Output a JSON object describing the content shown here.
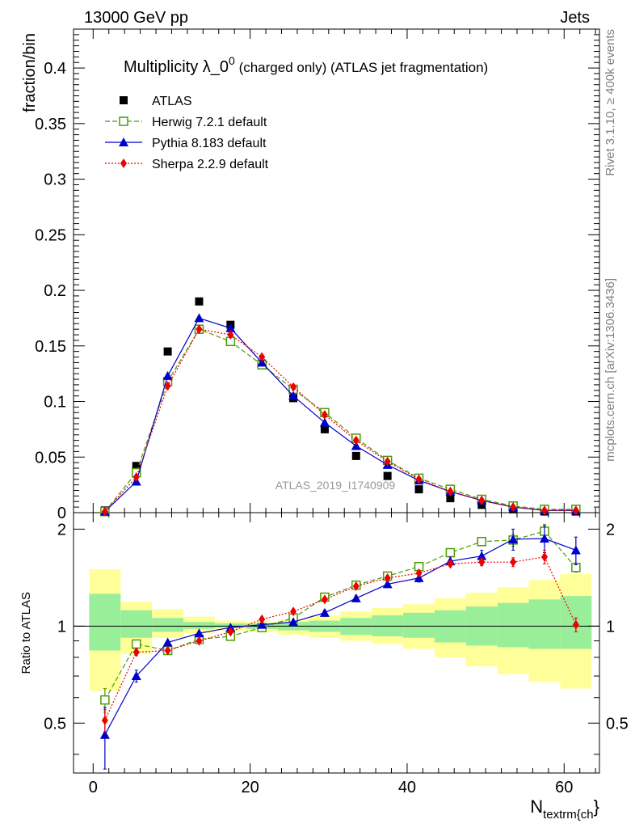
{
  "header": {
    "left": "13000 GeV pp",
    "right": "Jets",
    "title_main": "Multiplicity λ_0",
    "title_sup": "0",
    "title_rest": " (charged only) (ATLAS jet fragmentation)",
    "watermark": "ATLAS_2019_I1740909"
  },
  "side_labels": {
    "rivet": "Rivet 3.1.10, ≥ 400k events",
    "mcplots": "mcplots.cern.ch [arXiv:1306.3436]"
  },
  "chart_data": [
    {
      "type": "line",
      "panel": "main",
      "ylabel": "fraction/bin",
      "xlabel": "N_textrm{ch}",
      "xlabel_main": "N",
      "xlabel_sub": "textrm{ch",
      "xlabel_tail": "}",
      "xlim": [
        -2.5,
        64.5
      ],
      "ylim": [
        0,
        0.435
      ],
      "y_ticks": [
        0,
        0.05,
        0.1,
        0.15,
        0.2,
        0.25,
        0.3,
        0.35,
        0.4
      ],
      "y_tick_labels": [
        "0",
        "0.05",
        "0.1",
        "0.15",
        "0.2",
        "0.25",
        "0.3",
        "0.35",
        "0.4"
      ],
      "x": [
        1.5,
        5.5,
        9.5,
        13.5,
        17.5,
        21.5,
        25.5,
        29.5,
        33.5,
        37.5,
        41.5,
        45.5,
        49.5,
        53.5,
        57.5,
        61.5
      ],
      "series": [
        {
          "name": "ATLAS",
          "color": "#000000",
          "marker": "square",
          "values": [
            0.002,
            0.042,
            0.145,
            0.19,
            0.169,
            0.134,
            0.103,
            0.075,
            0.051,
            0.033,
            0.021,
            0.013,
            0.007,
            0.003,
            0.001,
            0.001
          ]
        },
        {
          "name": "Herwig 7.2.1 default",
          "color": "#4e9a06",
          "marker": "open-square",
          "dash": "6,3",
          "values": [
            0.001,
            0.036,
            0.118,
            0.165,
            0.154,
            0.133,
            0.111,
            0.09,
            0.067,
            0.047,
            0.031,
            0.021,
            0.012,
            0.006,
            0.003,
            0.003
          ]
        },
        {
          "name": "Pythia 8.183 default",
          "color": "#0000cc",
          "marker": "triangle",
          "values": [
            0.001,
            0.028,
            0.123,
            0.175,
            0.166,
            0.135,
            0.105,
            0.081,
            0.06,
            0.043,
            0.029,
            0.019,
            0.011,
            0.005,
            0.002,
            0.002
          ]
        },
        {
          "name": "Sherpa 2.2.9 default",
          "color": "#ee0000",
          "marker": "diamond",
          "dash": "2,2",
          "values": [
            0.001,
            0.032,
            0.114,
            0.165,
            0.16,
            0.14,
            0.113,
            0.088,
            0.065,
            0.046,
            0.03,
            0.019,
            0.011,
            0.005,
            0.002,
            0.002
          ]
        }
      ]
    },
    {
      "type": "line",
      "panel": "ratio",
      "ylabel": "Ratio to ATLAS",
      "ylim": [
        0.35,
        2.25
      ],
      "y_ticks": [
        0.5,
        1,
        2
      ],
      "y_tick_labels": [
        "0.5",
        "1",
        "2"
      ],
      "xlim": [
        -2.5,
        64.5
      ],
      "x_ticks": [
        0,
        20,
        40,
        60
      ],
      "x_tick_labels": [
        "0",
        "20",
        "40",
        "60"
      ],
      "bin_edges": [
        -0.5,
        3.5,
        7.5,
        11.5,
        15.5,
        19.5,
        23.5,
        27.5,
        31.5,
        35.5,
        39.5,
        43.5,
        47.5,
        51.5,
        55.5,
        59.5,
        63.5
      ],
      "band_outer": [
        [
          0.63,
          1.5
        ],
        [
          0.82,
          1.19
        ],
        [
          0.92,
          1.13
        ],
        [
          0.95,
          1.07
        ],
        [
          0.97,
          1.04
        ],
        [
          0.96,
          1.03
        ],
        [
          0.94,
          1.05
        ],
        [
          0.92,
          1.08
        ],
        [
          0.9,
          1.11
        ],
        [
          0.88,
          1.14
        ],
        [
          0.85,
          1.17
        ],
        [
          0.8,
          1.22
        ],
        [
          0.75,
          1.27
        ],
        [
          0.71,
          1.32
        ],
        [
          0.67,
          1.39
        ],
        [
          0.64,
          1.45
        ]
      ],
      "band_inner": [
        [
          0.84,
          1.26
        ],
        [
          0.92,
          1.12
        ],
        [
          0.96,
          1.06
        ],
        [
          0.98,
          1.03
        ],
        [
          0.99,
          1.02
        ],
        [
          0.98,
          1.02
        ],
        [
          0.97,
          1.03
        ],
        [
          0.96,
          1.04
        ],
        [
          0.94,
          1.06
        ],
        [
          0.93,
          1.08
        ],
        [
          0.92,
          1.1
        ],
        [
          0.89,
          1.12
        ],
        [
          0.87,
          1.15
        ],
        [
          0.86,
          1.18
        ],
        [
          0.85,
          1.21
        ],
        [
          0.85,
          1.24
        ]
      ],
      "x": [
        1.5,
        5.5,
        9.5,
        13.5,
        17.5,
        21.5,
        25.5,
        29.5,
        33.5,
        37.5,
        41.5,
        45.5,
        49.5,
        53.5,
        57.5,
        61.5
      ],
      "series": [
        {
          "name": "Herwig 7.2.1 default",
          "color": "#4e9a06",
          "marker": "open-square",
          "dash": "6,3",
          "values": [
            0.59,
            0.88,
            0.84,
            0.91,
            0.93,
            0.99,
            1.06,
            1.23,
            1.34,
            1.43,
            1.53,
            1.69,
            1.83,
            1.85,
            1.97,
            1.52
          ],
          "errors": [
            0.05,
            0.02,
            0.01,
            0.01,
            0.01,
            0.01,
            0.01,
            0.01,
            0.02,
            0.02,
            0.03,
            0.04,
            0.05,
            0.08,
            0.1,
            0.05
          ]
        },
        {
          "name": "Pythia 8.183 default",
          "color": "#0000cc",
          "marker": "triangle",
          "values": [
            0.46,
            0.7,
            0.89,
            0.95,
            0.99,
            1.01,
            1.03,
            1.1,
            1.22,
            1.35,
            1.41,
            1.59,
            1.65,
            1.86,
            1.87,
            1.72
          ],
          "errors": [
            0.1,
            0.03,
            0.01,
            0.01,
            0.01,
            0.01,
            0.01,
            0.02,
            0.02,
            0.03,
            0.04,
            0.05,
            0.07,
            0.14,
            0.18,
            0.17
          ]
        },
        {
          "name": "Sherpa 2.2.9 default",
          "color": "#ee0000",
          "marker": "diamond",
          "dash": "2,2",
          "values": [
            0.51,
            0.83,
            0.84,
            0.9,
            0.96,
            1.05,
            1.11,
            1.21,
            1.33,
            1.41,
            1.46,
            1.56,
            1.58,
            1.58,
            1.64,
            1.01
          ],
          "errors": [
            0.04,
            0.02,
            0.01,
            0.01,
            0.01,
            0.01,
            0.01,
            0.01,
            0.02,
            0.02,
            0.03,
            0.03,
            0.04,
            0.05,
            0.08,
            0.05
          ]
        }
      ]
    }
  ]
}
